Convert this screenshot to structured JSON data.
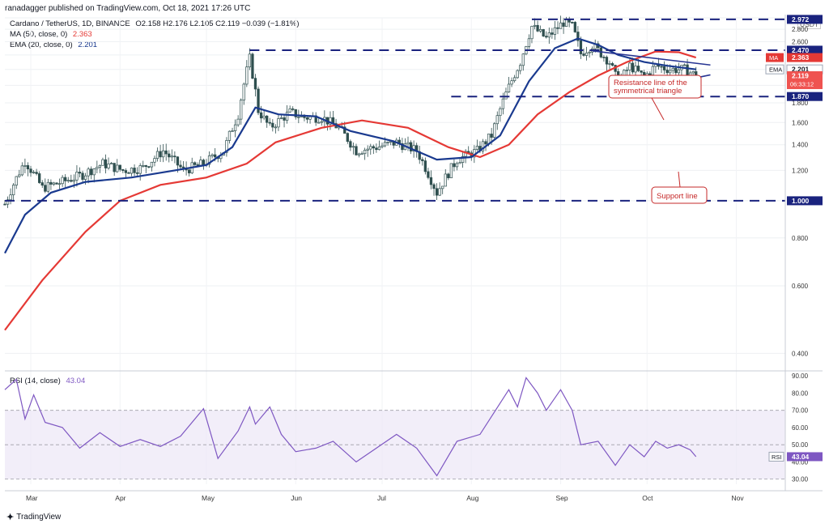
{
  "header": {
    "publisher": "ranadagger published on TradingView.com, Oct 18, 2021 17:26 UTC"
  },
  "legend": {
    "symbol": "Cardano / TetherUS, 1D, BINANCE",
    "ohlc": "O2.158  H2.176  L2.105  C2.119  −0.039 (−1.81%)",
    "ma_label": "MA (50, close, 0)",
    "ma_value": "2.363",
    "ema_label": "EMA (20, close, 0)",
    "ema_value": "2.201",
    "rsi_label": "RSI (14, close)",
    "rsi_value": "43.04"
  },
  "currency": "USDT",
  "brand": "TradingView",
  "colors": {
    "up": "#26a69a",
    "down": "#ef5350",
    "candle": "#2f4f4f",
    "ma": "#e53935",
    "ema": "#1a3a8f",
    "level": "#1a237e",
    "rsi": "#7e57c2",
    "annotation": "#c62828"
  },
  "chart_data": [
    {
      "type": "line",
      "title": "Cardano / TetherUS, 1D, BINANCE",
      "y_scale": "log",
      "ylim": [
        0.36,
        3.0
      ],
      "y_ticks": [
        "3",
        "2.800",
        "2.600",
        "2.400",
        "2.200",
        "2.000",
        "1.800",
        "1.600",
        "1.400",
        "1.200",
        "1.000",
        "0.800",
        "0.600",
        "0.400"
      ],
      "x_ticks": [
        "Mar",
        "Apr",
        "May",
        "Jun",
        "Jul",
        "Aug",
        "Sep",
        "Oct",
        "Nov"
      ],
      "x_range": [
        "2021-02-20",
        "2021-11-18"
      ],
      "series": [
        {
          "name": "Cardano / TetherUS, 1D, BINANCE",
          "style": "candles-approx-close",
          "points": [
            [
              "2021-02-20",
              0.98
            ],
            [
              "2021-02-27",
              1.27
            ],
            [
              "2021-03-05",
              1.08
            ],
            [
              "2021-03-12",
              1.12
            ],
            [
              "2021-03-19",
              1.17
            ],
            [
              "2021-03-26",
              1.25
            ],
            [
              "2021-04-02",
              1.2
            ],
            [
              "2021-04-09",
              1.22
            ],
            [
              "2021-04-16",
              1.35
            ],
            [
              "2021-04-23",
              1.2
            ],
            [
              "2021-04-30",
              1.25
            ],
            [
              "2021-05-07",
              1.35
            ],
            [
              "2021-05-12",
              1.68
            ],
            [
              "2021-05-16",
              2.35
            ],
            [
              "2021-05-19",
              1.72
            ],
            [
              "2021-05-23",
              1.55
            ],
            [
              "2021-05-30",
              1.7
            ],
            [
              "2021-06-04",
              1.65
            ],
            [
              "2021-06-10",
              1.65
            ],
            [
              "2021-06-16",
              1.55
            ],
            [
              "2021-06-22",
              1.35
            ],
            [
              "2021-06-29",
              1.38
            ],
            [
              "2021-07-06",
              1.42
            ],
            [
              "2021-07-13",
              1.35
            ],
            [
              "2021-07-20",
              1.05
            ],
            [
              "2021-07-27",
              1.28
            ],
            [
              "2021-08-03",
              1.35
            ],
            [
              "2021-08-08",
              1.48
            ],
            [
              "2021-08-13",
              1.9
            ],
            [
              "2021-08-18",
              2.3
            ],
            [
              "2021-08-22",
              2.85
            ],
            [
              "2021-08-27",
              2.65
            ],
            [
              "2021-09-02",
              2.92
            ],
            [
              "2021-09-05",
              2.85
            ],
            [
              "2021-09-08",
              2.42
            ],
            [
              "2021-09-12",
              2.55
            ],
            [
              "2021-09-18",
              2.3
            ],
            [
              "2021-09-21",
              2.02
            ],
            [
              "2021-09-25",
              2.25
            ],
            [
              "2021-09-30",
              2.1
            ],
            [
              "2021-10-04",
              2.25
            ],
            [
              "2021-10-09",
              2.2
            ],
            [
              "2021-10-14",
              2.2
            ],
            [
              "2021-10-18",
              2.119
            ]
          ]
        },
        {
          "name": "MA (50, close, 0)",
          "points": [
            [
              "2021-02-20",
              0.46
            ],
            [
              "2021-03-05",
              0.62
            ],
            [
              "2021-03-20",
              0.83
            ],
            [
              "2021-04-01",
              1.0
            ],
            [
              "2021-04-15",
              1.1
            ],
            [
              "2021-05-01",
              1.15
            ],
            [
              "2021-05-15",
              1.25
            ],
            [
              "2021-05-25",
              1.42
            ],
            [
              "2021-06-10",
              1.55
            ],
            [
              "2021-06-24",
              1.62
            ],
            [
              "2021-07-10",
              1.55
            ],
            [
              "2021-07-24",
              1.38
            ],
            [
              "2021-08-04",
              1.3
            ],
            [
              "2021-08-14",
              1.4
            ],
            [
              "2021-08-24",
              1.68
            ],
            [
              "2021-09-04",
              1.92
            ],
            [
              "2021-09-14",
              2.12
            ],
            [
              "2021-09-24",
              2.3
            ],
            [
              "2021-10-04",
              2.45
            ],
            [
              "2021-10-12",
              2.44
            ],
            [
              "2021-10-18",
              2.363
            ]
          ]
        },
        {
          "name": "EMA (20, close, 0)",
          "points": [
            [
              "2021-02-20",
              0.73
            ],
            [
              "2021-02-27",
              0.92
            ],
            [
              "2021-03-08",
              1.05
            ],
            [
              "2021-03-20",
              1.12
            ],
            [
              "2021-04-05",
              1.15
            ],
            [
              "2021-04-20",
              1.2
            ],
            [
              "2021-05-01",
              1.24
            ],
            [
              "2021-05-10",
              1.38
            ],
            [
              "2021-05-18",
              1.75
            ],
            [
              "2021-05-26",
              1.68
            ],
            [
              "2021-06-08",
              1.66
            ],
            [
              "2021-06-20",
              1.52
            ],
            [
              "2021-07-05",
              1.43
            ],
            [
              "2021-07-20",
              1.28
            ],
            [
              "2021-08-01",
              1.3
            ],
            [
              "2021-08-11",
              1.48
            ],
            [
              "2021-08-21",
              2.05
            ],
            [
              "2021-08-30",
              2.5
            ],
            [
              "2021-09-07",
              2.65
            ],
            [
              "2021-09-14",
              2.55
            ],
            [
              "2021-09-21",
              2.4
            ],
            [
              "2021-09-30",
              2.3
            ],
            [
              "2021-10-08",
              2.25
            ],
            [
              "2021-10-18",
              2.201
            ]
          ]
        }
      ],
      "levels": [
        {
          "value": 2.972,
          "label": "2.972",
          "from": "2021-08-22"
        },
        {
          "value": 2.47,
          "label": "2.470",
          "from": "2021-05-16"
        },
        {
          "value": 1.87,
          "label": "1.870",
          "from": "2021-07-25"
        },
        {
          "value": 1.0,
          "label": "1.000",
          "from": "2021-02-20"
        }
      ],
      "trendlines": [
        {
          "name": "resistance",
          "from": [
            "2021-09-12",
            2.46
          ],
          "to": [
            "2021-10-23",
            2.26
          ]
        },
        {
          "name": "support",
          "from": [
            "2021-09-21",
            1.9
          ],
          "to": [
            "2021-10-23",
            2.13
          ]
        }
      ],
      "annotations": {
        "resistance": "Resistance line of the\nsymmetrical triangle",
        "support": "Support line"
      },
      "price_labels": [
        {
          "name": "level-2972",
          "text": "2.972",
          "value": 2.972
        },
        {
          "name": "level-2470",
          "text": "2.470",
          "value": 2.47
        },
        {
          "name": "ma",
          "text": "2.363",
          "tag": "MA",
          "value": 2.363
        },
        {
          "name": "ema",
          "text": "2.201",
          "tag": "EMA",
          "value": 2.201
        },
        {
          "name": "last",
          "text": "2.119",
          "sub": "06:33:12",
          "value": 2.119
        },
        {
          "name": "level-1870",
          "text": "1.870",
          "value": 1.87
        },
        {
          "name": "level-1000",
          "text": "1.000",
          "value": 1.0
        }
      ]
    },
    {
      "type": "line",
      "title": "RSI (14, close)",
      "ylim": [
        27,
        92
      ],
      "y_ticks": [
        "90.00",
        "80.00",
        "70.00",
        "60.00",
        "50.00",
        "40.00",
        "30.00"
      ],
      "band": [
        30,
        70
      ],
      "series": [
        {
          "name": "RSI (14, close)",
          "points": [
            [
              "2021-02-20",
              82
            ],
            [
              "2021-02-24",
              88
            ],
            [
              "2021-02-27",
              65
            ],
            [
              "2021-03-02",
              79
            ],
            [
              "2021-03-06",
              63
            ],
            [
              "2021-03-12",
              60
            ],
            [
              "2021-03-18",
              48
            ],
            [
              "2021-03-25",
              57
            ],
            [
              "2021-04-01",
              49
            ],
            [
              "2021-04-08",
              53
            ],
            [
              "2021-04-15",
              49
            ],
            [
              "2021-04-22",
              55
            ],
            [
              "2021-04-30",
              71
            ],
            [
              "2021-05-05",
              42
            ],
            [
              "2021-05-12",
              58
            ],
            [
              "2021-05-16",
              72
            ],
            [
              "2021-05-18",
              62
            ],
            [
              "2021-05-23",
              72
            ],
            [
              "2021-05-27",
              56
            ],
            [
              "2021-06-01",
              46
            ],
            [
              "2021-06-08",
              48
            ],
            [
              "2021-06-14",
              52
            ],
            [
              "2021-06-22",
              40
            ],
            [
              "2021-06-29",
              48
            ],
            [
              "2021-07-06",
              56
            ],
            [
              "2021-07-13",
              48
            ],
            [
              "2021-07-20",
              32
            ],
            [
              "2021-07-27",
              52
            ],
            [
              "2021-08-04",
              56
            ],
            [
              "2021-08-14",
              82
            ],
            [
              "2021-08-17",
              72
            ],
            [
              "2021-08-20",
              89
            ],
            [
              "2021-08-24",
              80
            ],
            [
              "2021-08-27",
              70
            ],
            [
              "2021-09-01",
              82
            ],
            [
              "2021-09-05",
              70
            ],
            [
              "2021-09-08",
              50
            ],
            [
              "2021-09-14",
              52
            ],
            [
              "2021-09-20",
              38
            ],
            [
              "2021-09-25",
              50
            ],
            [
              "2021-09-30",
              43
            ],
            [
              "2021-10-04",
              52
            ],
            [
              "2021-10-08",
              48
            ],
            [
              "2021-10-12",
              50
            ],
            [
              "2021-10-16",
              47
            ],
            [
              "2021-10-18",
              43.04
            ]
          ]
        }
      ]
    }
  ]
}
